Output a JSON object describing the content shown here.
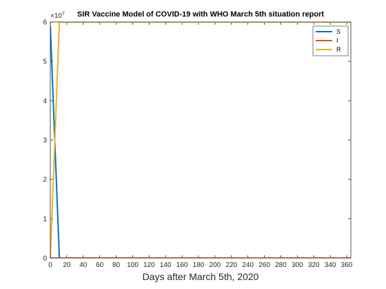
{
  "chart_data": {
    "type": "line",
    "title": "SIR Vaccine Model of COVID-19 with WHO March 5th situation report",
    "xlabel": "Days after March 5th, 2020",
    "ylabel": "",
    "y_multiplier_base": "×10",
    "y_multiplier_exp": "7",
    "xlim": [
      0,
      365
    ],
    "ylim": [
      0,
      6
    ],
    "x_ticks": [
      "0",
      "20",
      "40",
      "60",
      "80",
      "100",
      "120",
      "140",
      "160",
      "180",
      "200",
      "220",
      "240",
      "260",
      "280",
      "300",
      "320",
      "340",
      "360"
    ],
    "y_ticks": [
      "0",
      "1",
      "2",
      "3",
      "4",
      "5",
      "6"
    ],
    "grid": false,
    "legend_position": "top-right",
    "series": [
      {
        "name": "S",
        "color": "#0072BD",
        "x": [
          0,
          11,
          365
        ],
        "y": [
          5.9,
          0,
          0
        ]
      },
      {
        "name": "I",
        "color": "#D95319",
        "x": [
          0,
          365
        ],
        "y": [
          0,
          0
        ]
      },
      {
        "name": "R",
        "color": "#EDB120",
        "x": [
          0,
          11,
          365
        ],
        "y": [
          0,
          6.0,
          6.0
        ]
      }
    ]
  }
}
